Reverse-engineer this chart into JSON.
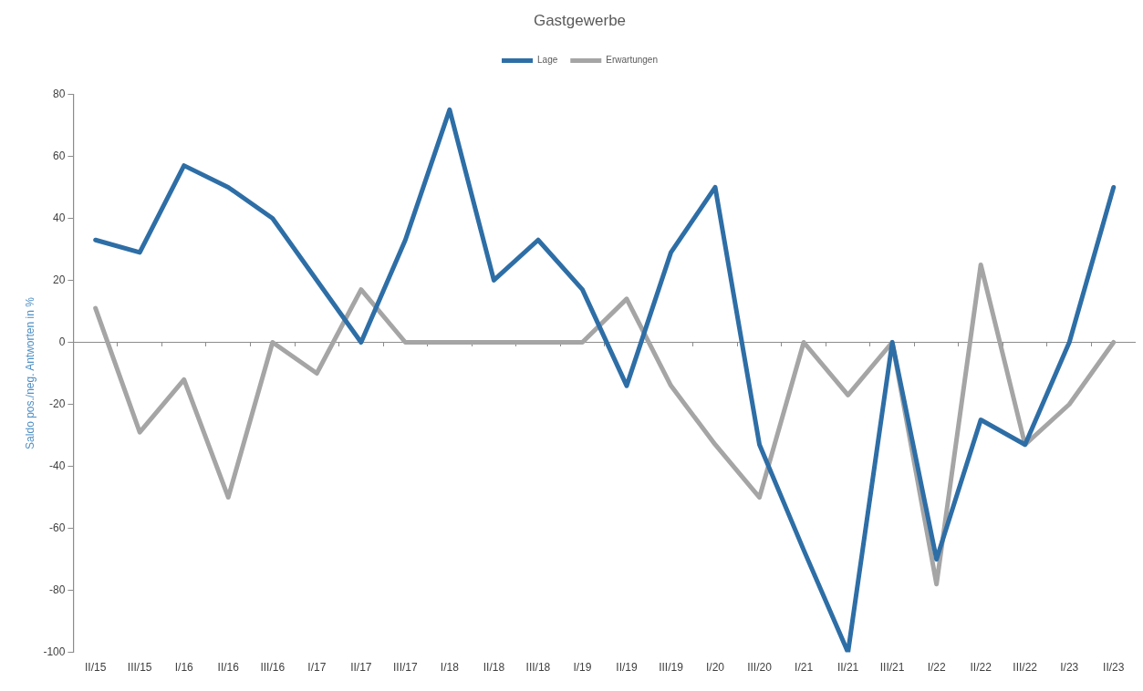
{
  "chart_data": {
    "type": "line",
    "title": "Gastgewerbe",
    "ylabel": "Saldo pos./neg. Antworten in %",
    "categories": [
      "II/15",
      "III/15",
      "I/16",
      "II/16",
      "III/16",
      "I/17",
      "II/17",
      "III/17",
      "I/18",
      "II/18",
      "III/18",
      "I/19",
      "II/19",
      "III/19",
      "I/20",
      "III/20",
      "I/21",
      "II/21",
      "III/21",
      "I/22",
      "II/22",
      "III/22",
      "I/23",
      "II/23"
    ],
    "series": [
      {
        "name": "Lage",
        "color": "#2e6ea6",
        "values": [
          33,
          29,
          57,
          50,
          40,
          20,
          0,
          33,
          75,
          20,
          33,
          17,
          -14,
          29,
          50,
          -33,
          -67,
          -100,
          0,
          -70,
          -25,
          -33,
          0,
          50
        ]
      },
      {
        "name": "Erwartungen",
        "color": "#a5a5a5",
        "values": [
          11,
          -29,
          -12,
          -50,
          0,
          -10,
          17,
          0,
          0,
          0,
          0,
          0,
          14,
          -14,
          -33,
          -50,
          0,
          -17,
          0,
          -78,
          25,
          -33,
          -20,
          0
        ]
      }
    ],
    "ylim": [
      -100,
      80
    ],
    "yticks": [
      -100,
      -80,
      -60,
      -40,
      -20,
      0,
      20,
      40,
      60,
      80
    ],
    "ref_lines": [
      {
        "axis": "y",
        "value": 0,
        "color": "#8c8c8c",
        "line_style": "solid"
      }
    ],
    "grid": false,
    "legend": "top",
    "marker": "none"
  }
}
